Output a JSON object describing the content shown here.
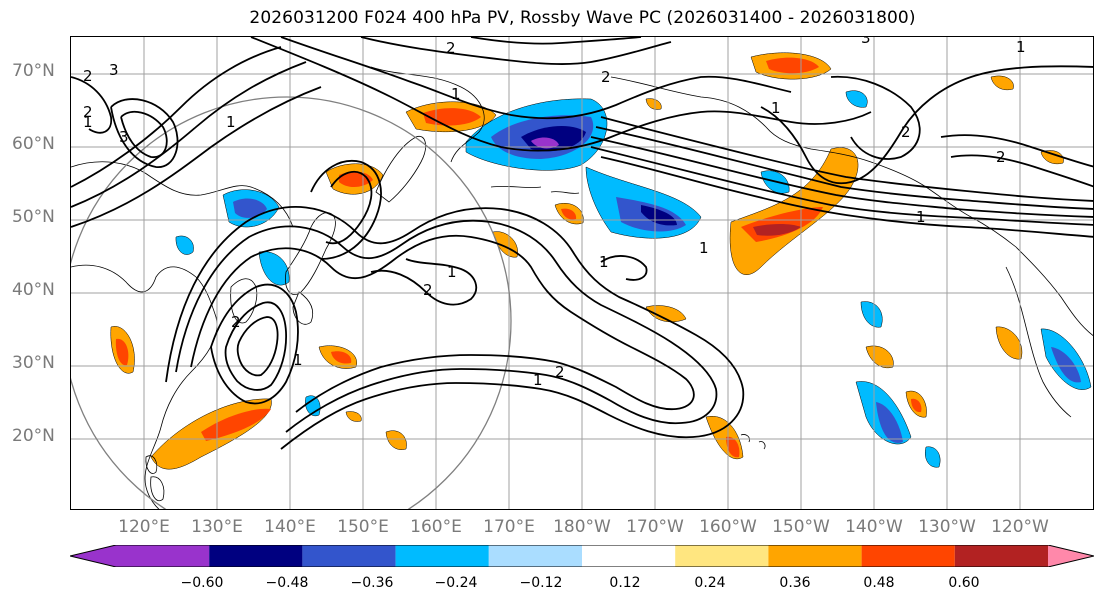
{
  "title": "2026031200 F024 400 hPa PV, Rossby Wave PC (2026031400 - 2026031800)",
  "lat_labels": [
    "70°N",
    "60°N",
    "50°N",
    "40°N",
    "30°N",
    "20°N"
  ],
  "lon_labels": [
    "120°E",
    "130°E",
    "140°E",
    "150°E",
    "160°E",
    "170°E",
    "180°W",
    "170°W",
    "160°W",
    "150°W",
    "140°W",
    "130°W",
    "120°W"
  ],
  "contour_labels": [
    "3",
    "2",
    "1",
    "1",
    "2",
    "3",
    "2",
    "1",
    "1",
    "2",
    "1",
    "1",
    "2",
    "2",
    "1",
    "1",
    "2",
    "1",
    "1",
    "3",
    "2",
    "1",
    "2"
  ],
  "colorbar": {
    "tick_labels": [
      "−0.60",
      "−0.48",
      "−0.36",
      "−0.24",
      "−0.12",
      "0.12",
      "0.24",
      "0.36",
      "0.48",
      "0.60"
    ],
    "colors": [
      "#9933cc",
      "#000080",
      "#3355cc",
      "#00bbff",
      "#aaddff",
      "#ffffff",
      "#ffe680",
      "#ffa500",
      "#ff4500",
      "#b22222",
      "#ff88aa"
    ]
  },
  "colors": {
    "grid": "#a0a0a0",
    "coast": "#000000",
    "contour": "#000000",
    "axis_label": "#7a7a7a",
    "circle": "#808080"
  }
}
